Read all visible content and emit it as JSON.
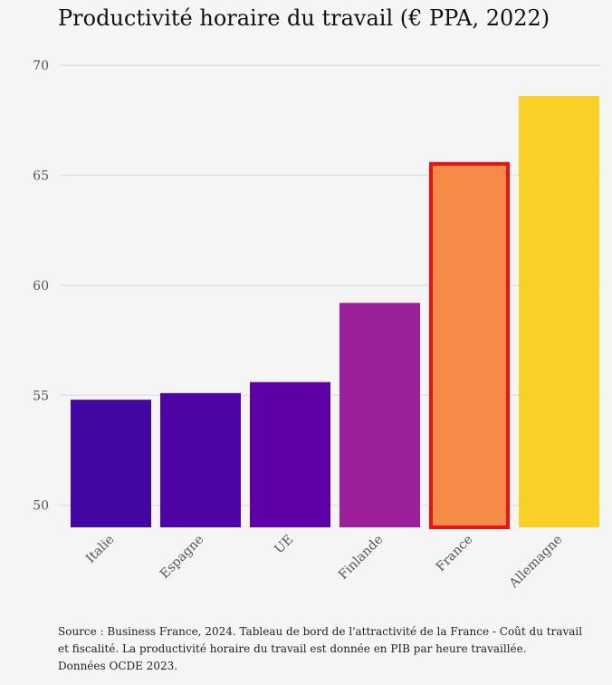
{
  "title": "Productivité horaire du travail (€ PPA, 2022)",
  "source": {
    "line1": "Source : Business France, 2024. Tableau de bord de l'attractivité de la France - Coût du travail",
    "line2": "et fiscalité. La productivité horaire du travail est donnée en PIB par heure travaillée.",
    "line3": "Données OCDE 2023."
  },
  "chart_data": {
    "type": "bar",
    "title": "Productivité horaire du travail (€ PPA, 2022)",
    "xlabel": "",
    "ylabel": "",
    "categories": [
      "Italie",
      "Espagne",
      "UE",
      "Finlande",
      "France",
      "Allemagne"
    ],
    "values": [
      54.8,
      55.1,
      55.6,
      59.2,
      65.6,
      68.6
    ],
    "colors": [
      "#4306a2",
      "#4f04a6",
      "#5d01a6",
      "#9c1f9c",
      "#f58b46",
      "#fbd026"
    ],
    "highlight": {
      "category": "France",
      "outline_color": "#ee1111"
    },
    "yticks": [
      50,
      55,
      60,
      65,
      70
    ],
    "ylim": [
      49,
      70
    ],
    "grid": true
  }
}
